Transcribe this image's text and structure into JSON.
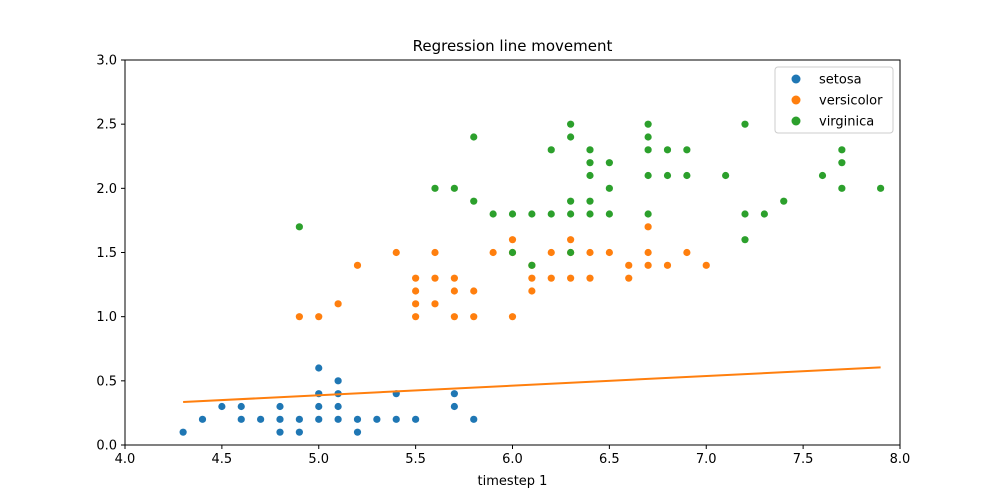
{
  "colors": {
    "setosa": "#1f77b4",
    "versicolor": "#ff7f0e",
    "virginica": "#2ca02c",
    "regression": "#ff7f0e"
  },
  "chart_data": {
    "type": "scatter",
    "title": "Regression line movement",
    "xlabel": "timestep 1",
    "ylabel": "",
    "xlim": [
      4.0,
      8.0
    ],
    "ylim": [
      0.0,
      3.0
    ],
    "xticks": [
      "4.0",
      "4.5",
      "5.0",
      "5.5",
      "6.0",
      "6.5",
      "7.0",
      "7.5",
      "8.0"
    ],
    "yticks": [
      "0.0",
      "0.5",
      "1.0",
      "1.5",
      "2.0",
      "2.5",
      "3.0"
    ],
    "grid": false,
    "legend_position": "top-right",
    "series": [
      {
        "name": "setosa",
        "points": [
          [
            4.3,
            0.1
          ],
          [
            4.4,
            0.2
          ],
          [
            4.5,
            0.3
          ],
          [
            4.6,
            0.2
          ],
          [
            4.6,
            0.3
          ],
          [
            4.7,
            0.2
          ],
          [
            4.8,
            0.1
          ],
          [
            4.8,
            0.2
          ],
          [
            4.8,
            0.3
          ],
          [
            4.9,
            0.1
          ],
          [
            4.9,
            0.2
          ],
          [
            5.0,
            0.2
          ],
          [
            5.0,
            0.3
          ],
          [
            5.0,
            0.4
          ],
          [
            5.0,
            0.6
          ],
          [
            5.1,
            0.2
          ],
          [
            5.1,
            0.3
          ],
          [
            5.1,
            0.4
          ],
          [
            5.1,
            0.5
          ],
          [
            5.2,
            0.1
          ],
          [
            5.2,
            0.2
          ],
          [
            5.3,
            0.2
          ],
          [
            5.4,
            0.2
          ],
          [
            5.4,
            0.4
          ],
          [
            5.5,
            0.2
          ],
          [
            5.7,
            0.3
          ],
          [
            5.7,
            0.4
          ],
          [
            5.8,
            0.2
          ]
        ]
      },
      {
        "name": "versicolor",
        "points": [
          [
            4.9,
            1.0
          ],
          [
            5.0,
            1.0
          ],
          [
            5.1,
            1.1
          ],
          [
            5.2,
            1.4
          ],
          [
            5.4,
            1.5
          ],
          [
            5.5,
            1.0
          ],
          [
            5.5,
            1.1
          ],
          [
            5.5,
            1.2
          ],
          [
            5.5,
            1.3
          ],
          [
            5.6,
            1.1
          ],
          [
            5.6,
            1.3
          ],
          [
            5.6,
            1.5
          ],
          [
            5.7,
            1.0
          ],
          [
            5.7,
            1.2
          ],
          [
            5.7,
            1.3
          ],
          [
            5.8,
            1.0
          ],
          [
            5.8,
            1.2
          ],
          [
            5.9,
            1.5
          ],
          [
            6.0,
            1.0
          ],
          [
            6.0,
            1.5
          ],
          [
            6.0,
            1.6
          ],
          [
            6.1,
            1.2
          ],
          [
            6.1,
            1.3
          ],
          [
            6.1,
            1.4
          ],
          [
            6.2,
            1.3
          ],
          [
            6.2,
            1.5
          ],
          [
            6.3,
            1.3
          ],
          [
            6.3,
            1.5
          ],
          [
            6.3,
            1.6
          ],
          [
            6.4,
            1.3
          ],
          [
            6.4,
            1.5
          ],
          [
            6.5,
            1.5
          ],
          [
            6.6,
            1.3
          ],
          [
            6.6,
            1.4
          ],
          [
            6.7,
            1.4
          ],
          [
            6.7,
            1.5
          ],
          [
            6.7,
            1.7
          ],
          [
            6.8,
            1.4
          ],
          [
            6.9,
            1.5
          ],
          [
            7.0,
            1.4
          ]
        ]
      },
      {
        "name": "virginica",
        "points": [
          [
            4.9,
            1.7
          ],
          [
            5.6,
            2.0
          ],
          [
            5.7,
            2.0
          ],
          [
            5.8,
            1.9
          ],
          [
            5.8,
            2.4
          ],
          [
            5.9,
            1.8
          ],
          [
            6.0,
            1.5
          ],
          [
            6.0,
            1.8
          ],
          [
            6.1,
            1.4
          ],
          [
            6.1,
            1.8
          ],
          [
            6.2,
            1.8
          ],
          [
            6.2,
            2.3
          ],
          [
            6.3,
            1.5
          ],
          [
            6.3,
            1.8
          ],
          [
            6.3,
            1.9
          ],
          [
            6.3,
            2.4
          ],
          [
            6.3,
            2.5
          ],
          [
            6.4,
            1.8
          ],
          [
            6.4,
            1.9
          ],
          [
            6.4,
            2.1
          ],
          [
            6.4,
            2.2
          ],
          [
            6.4,
            2.3
          ],
          [
            6.5,
            1.8
          ],
          [
            6.5,
            2.0
          ],
          [
            6.5,
            2.2
          ],
          [
            6.7,
            1.8
          ],
          [
            6.7,
            2.1
          ],
          [
            6.7,
            2.3
          ],
          [
            6.7,
            2.4
          ],
          [
            6.7,
            2.5
          ],
          [
            6.8,
            2.1
          ],
          [
            6.8,
            2.3
          ],
          [
            6.9,
            2.1
          ],
          [
            6.9,
            2.3
          ],
          [
            7.1,
            2.1
          ],
          [
            7.2,
            1.6
          ],
          [
            7.2,
            1.8
          ],
          [
            7.2,
            2.5
          ],
          [
            7.3,
            1.8
          ],
          [
            7.4,
            1.9
          ],
          [
            7.6,
            2.1
          ],
          [
            7.7,
            2.0
          ],
          [
            7.7,
            2.2
          ],
          [
            7.7,
            2.3
          ],
          [
            7.9,
            2.0
          ]
        ]
      }
    ],
    "regression_line": {
      "x": [
        4.3,
        7.9
      ],
      "y": [
        0.335,
        0.605
      ]
    }
  }
}
